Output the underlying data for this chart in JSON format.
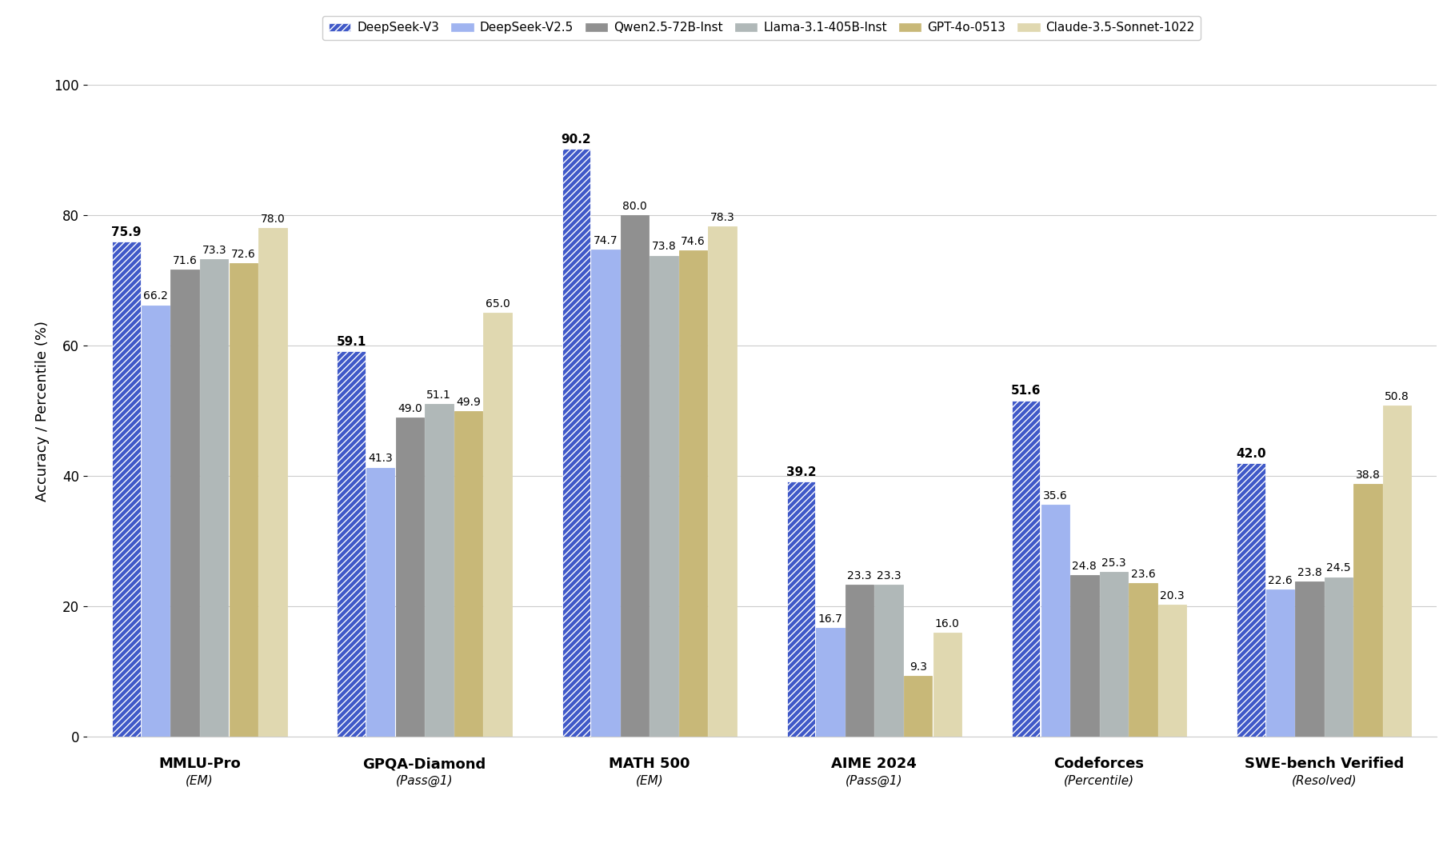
{
  "ylabel": "Accuracy / Percentile (%)",
  "ylim": [
    0,
    100
  ],
  "yticks": [
    0,
    20,
    40,
    60,
    80,
    100
  ],
  "benchmarks": [
    "MMLU-Pro",
    "GPQA-Diamond",
    "MATH 500",
    "AIME 2024",
    "Codeforces",
    "SWE-bench Verified"
  ],
  "subtitles": [
    "(EM)",
    "(Pass@1)",
    "(EM)",
    "(Pass@1)",
    "(Percentile)",
    "(Resolved)"
  ],
  "models": [
    "DeepSeek-V3",
    "DeepSeek-V2.5",
    "Qwen2.5-72B-Inst",
    "Llama-3.1-405B-Inst",
    "GPT-4o-0513",
    "Claude-3.5-Sonnet-1022"
  ],
  "colors": [
    "#4059c8",
    "#a0b4f0",
    "#909090",
    "#b0b8b8",
    "#c8b878",
    "#e0d8b0"
  ],
  "hatches": [
    "////",
    "",
    "",
    "",
    "",
    ""
  ],
  "data": [
    [
      75.9,
      66.2,
      71.6,
      73.3,
      72.6,
      78.0
    ],
    [
      59.1,
      41.3,
      49.0,
      51.1,
      49.9,
      65.0
    ],
    [
      90.2,
      74.7,
      80.0,
      73.8,
      74.6,
      78.3
    ],
    [
      39.2,
      16.7,
      23.3,
      23.3,
      9.3,
      16.0
    ],
    [
      51.6,
      35.6,
      24.8,
      25.3,
      23.6,
      20.3
    ],
    [
      42.0,
      22.6,
      23.8,
      24.5,
      38.8,
      50.8
    ]
  ],
  "background_color": "#ffffff",
  "grid_color": "#cccccc",
  "label_fontsize": 10,
  "bold_label_fontsize": 11,
  "axis_label_fontsize": 13,
  "tick_fontsize": 12,
  "bench_fontsize": 13,
  "sub_fontsize": 11
}
